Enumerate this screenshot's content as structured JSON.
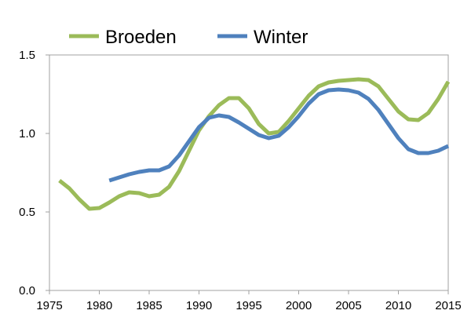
{
  "chart_data": {
    "type": "line",
    "title": "",
    "xlabel": "",
    "ylabel": "",
    "xlim": [
      1975,
      2015
    ],
    "ylim": [
      0.0,
      1.5
    ],
    "xticks": [
      "1975",
      "1980",
      "1985",
      "1990",
      "1995",
      "2000",
      "2005",
      "2010",
      "2015"
    ],
    "yticks": [
      "0.0",
      "0.5",
      "1.0",
      "1.5"
    ],
    "grid": false,
    "legend_position": "top",
    "series": [
      {
        "name": "Broeden",
        "color": "#9BBB59",
        "points": [
          [
            1976,
            0.7
          ],
          [
            1977,
            0.65
          ],
          [
            1978,
            0.58
          ],
          [
            1979,
            0.52
          ],
          [
            1980,
            0.525
          ],
          [
            1981,
            0.56
          ],
          [
            1982,
            0.6
          ],
          [
            1983,
            0.625
          ],
          [
            1984,
            0.62
          ],
          [
            1985,
            0.6
          ],
          [
            1986,
            0.61
          ],
          [
            1987,
            0.66
          ],
          [
            1988,
            0.76
          ],
          [
            1989,
            0.89
          ],
          [
            1990,
            1.02
          ],
          [
            1991,
            1.11
          ],
          [
            1992,
            1.18
          ],
          [
            1993,
            1.225
          ],
          [
            1994,
            1.225
          ],
          [
            1995,
            1.16
          ],
          [
            1996,
            1.06
          ],
          [
            1997,
            1.0
          ],
          [
            1998,
            1.01
          ],
          [
            1999,
            1.08
          ],
          [
            2000,
            1.16
          ],
          [
            2001,
            1.24
          ],
          [
            2002,
            1.3
          ],
          [
            2003,
            1.325
          ],
          [
            2004,
            1.335
          ],
          [
            2005,
            1.34
          ],
          [
            2006,
            1.345
          ],
          [
            2007,
            1.34
          ],
          [
            2008,
            1.3
          ],
          [
            2009,
            1.22
          ],
          [
            2010,
            1.14
          ],
          [
            2011,
            1.09
          ],
          [
            2012,
            1.085
          ],
          [
            2013,
            1.13
          ],
          [
            2014,
            1.22
          ],
          [
            2015,
            1.33
          ]
        ]
      },
      {
        "name": "Winter",
        "color": "#4F81BD",
        "points": [
          [
            1981,
            0.7
          ],
          [
            1982,
            0.72
          ],
          [
            1983,
            0.74
          ],
          [
            1984,
            0.755
          ],
          [
            1985,
            0.765
          ],
          [
            1986,
            0.765
          ],
          [
            1987,
            0.79
          ],
          [
            1988,
            0.86
          ],
          [
            1989,
            0.95
          ],
          [
            1990,
            1.04
          ],
          [
            1991,
            1.1
          ],
          [
            1992,
            1.115
          ],
          [
            1993,
            1.105
          ],
          [
            1994,
            1.07
          ],
          [
            1995,
            1.03
          ],
          [
            1996,
            0.99
          ],
          [
            1997,
            0.97
          ],
          [
            1998,
            0.985
          ],
          [
            1999,
            1.04
          ],
          [
            2000,
            1.11
          ],
          [
            2001,
            1.19
          ],
          [
            2002,
            1.25
          ],
          [
            2003,
            1.275
          ],
          [
            2004,
            1.28
          ],
          [
            2005,
            1.275
          ],
          [
            2006,
            1.26
          ],
          [
            2007,
            1.22
          ],
          [
            2008,
            1.15
          ],
          [
            2009,
            1.06
          ],
          [
            2010,
            0.97
          ],
          [
            2011,
            0.9
          ],
          [
            2012,
            0.875
          ],
          [
            2013,
            0.875
          ],
          [
            2014,
            0.89
          ],
          [
            2015,
            0.92
          ]
        ]
      }
    ]
  }
}
